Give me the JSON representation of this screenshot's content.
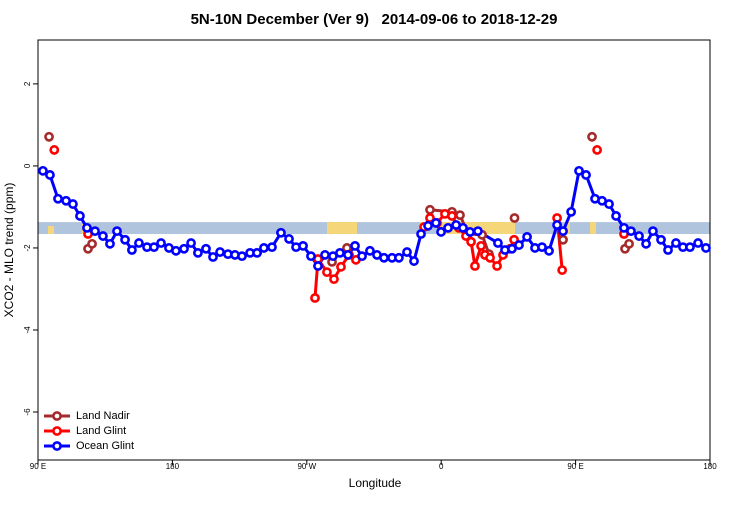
{
  "chart_data": {
    "type": "line",
    "title": "5N-10N December (Ver 9)   2014-09-06 to 2018-12-29",
    "x_label": "Longitude",
    "y_label": "XCO2 - MLO trend (ppm)",
    "xlim": [
      90,
      540
    ],
    "ylim": [
      -7.17,
      3.07
    ],
    "xticks": [
      {
        "value": 90,
        "label": "90 E"
      },
      {
        "value": 180,
        "label": "180"
      },
      {
        "value": 270,
        "label": "90 W"
      },
      {
        "value": 360,
        "label": "0"
      },
      {
        "value": 450,
        "label": "90 E"
      },
      {
        "value": 540,
        "label": "180"
      }
    ],
    "yticks": [
      -6,
      -4,
      -2,
      0,
      2
    ],
    "band": {
      "ylim": [
        -1.66,
        -1.37
      ],
      "color": "#b0c4de"
    },
    "legend": "bottom-left",
    "series": [
      {
        "name": "Land Nadir",
        "color": "#a52a2a",
        "x": [
          97.4,
          null,
          123.5,
          126.2,
          null,
          286.9,
          null,
          296.9,
          null,
          352.5,
          367.2,
          372.6,
          378,
          387.4,
          392,
          null,
          409.1,
          null,
          441.6,
          null,
          461,
          null,
          483.1,
          485.8
        ],
        "values": [
          0.71,
          null,
          -2.02,
          -1.9,
          null,
          -2.34,
          null,
          -2.0,
          null,
          -1.07,
          -1.12,
          -1.2,
          -1.66,
          -1.68,
          -2.15,
          null,
          -1.27,
          null,
          -1.8,
          null,
          0.71,
          null,
          -2.02,
          -1.9
        ]
      },
      {
        "name": "Land Glint",
        "color": "#ff0000",
        "x": [
          100.9,
          null,
          123.5,
          null,
          275.5,
          277.5,
          283.5,
          288.2,
          292.9,
          298.3,
          302.9,
          null,
          348.5,
          352.5,
          357.2,
          362.5,
          367.2,
          371.9,
          376.6,
          380,
          382.6,
          386.7,
          389.3,
          392.7,
          397.4,
          401.4,
          406.1,
          408.8,
          null,
          437.6,
          441,
          null,
          464.4,
          null,
          482.4
        ],
        "values": [
          0.39,
          null,
          -1.66,
          null,
          -3.22,
          -2.27,
          -2.59,
          -2.76,
          -2.46,
          -2.17,
          -2.29,
          null,
          -1.49,
          -1.27,
          -1.39,
          -1.17,
          -1.22,
          -1.51,
          -1.71,
          -1.85,
          -2.44,
          -1.95,
          -2.17,
          -2.24,
          -2.44,
          -2.17,
          -2.02,
          -1.8,
          null,
          -1.27,
          -2.54,
          null,
          0.39,
          null,
          -1.66
        ]
      },
      {
        "name": "Ocean Glint",
        "color": "#0000ff",
        "x": [
          93.3,
          98,
          103.4,
          108.8,
          113.4,
          118.1,
          122.8,
          128.2,
          133.5,
          138.2,
          142.9,
          148.3,
          152.9,
          157.6,
          163,
          167.7,
          172.4,
          177.7,
          182.4,
          187.8,
          192.5,
          197.1,
          202.5,
          207.2,
          211.9,
          217.2,
          221.9,
          226.6,
          232,
          236.7,
          241.3,
          246.7,
          252.7,
          258.1,
          262.8,
          267.5,
          272.8,
          277.5,
          282.2,
          287.5,
          292.2,
          297.6,
          302.3,
          307,
          312.3,
          317,
          321.7,
          327.1,
          331.7,
          337.1,
          341.8,
          346.5,
          351.2,
          356.5,
          359.9,
          364.6,
          370,
          374.6,
          379.3,
          384.6,
          398,
          402.7,
          407.4,
          412.1,
          417.5,
          422.8,
          427.5,
          432.2,
          437.6,
          441.6,
          447,
          452.3,
          457,
          463,
          467.7,
          472.4,
          477.1,
          482.4,
          487.1,
          492.5,
          497.2,
          501.8,
          507.2,
          511.9,
          517.2,
          521.9,
          526.6,
          532,
          537.3
        ],
        "values": [
          -0.12,
          -0.22,
          -0.8,
          -0.85,
          -0.93,
          -1.22,
          -1.51,
          -1.59,
          -1.71,
          -1.9,
          -1.59,
          -1.8,
          -2.05,
          -1.88,
          -1.98,
          -1.98,
          -1.88,
          -2.0,
          -2.07,
          -2.02,
          -1.88,
          -2.12,
          -2.02,
          -2.22,
          -2.1,
          -2.15,
          -2.17,
          -2.2,
          -2.12,
          -2.12,
          -2.0,
          -1.98,
          -1.63,
          -1.78,
          -1.98,
          -1.95,
          -2.2,
          -2.44,
          -2.17,
          -2.2,
          -2.12,
          -2.17,
          -1.95,
          -2.2,
          -2.07,
          -2.17,
          -2.24,
          -2.24,
          -2.24,
          -2.1,
          -2.32,
          -1.66,
          -1.46,
          -1.39,
          -1.61,
          -1.51,
          -1.44,
          -1.51,
          -1.61,
          -1.59,
          -1.88,
          -2.05,
          -2.02,
          -1.93,
          -1.73,
          -2.0,
          -1.98,
          -2.07,
          -1.44,
          -1.59,
          -1.12,
          -0.12,
          -0.22,
          -0.8,
          -0.85,
          -0.93,
          -1.22,
          -1.51,
          -1.59,
          -1.71,
          -1.9,
          -1.59,
          -1.8,
          -2.05,
          -1.88,
          -1.98,
          -1.98,
          -1.88,
          -2.0
        ]
      }
    ]
  }
}
